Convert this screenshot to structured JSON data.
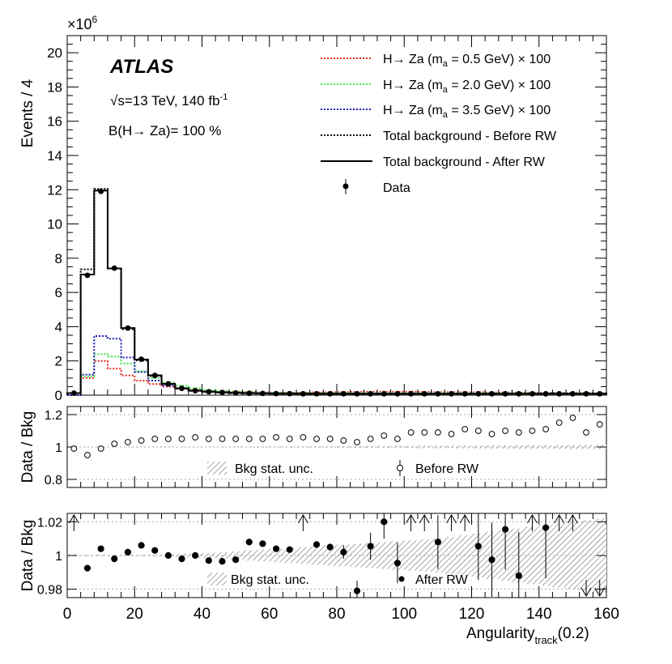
{
  "chart_data": [
    {
      "type": "line",
      "panel": "main",
      "y_multiplier": "×10",
      "y_multiplier_exp": "6",
      "ylabel": "Events / 4",
      "xlim": [
        0,
        160
      ],
      "ylim": [
        0,
        21
      ],
      "yticks": [
        0,
        2,
        4,
        6,
        8,
        10,
        12,
        14,
        16,
        18,
        20
      ],
      "bin_width": 4,
      "bin_edges_start": 0,
      "annotations": {
        "experiment": "ATLAS",
        "energy_prefix": "√s=13 TeV, 140 fb",
        "energy_exp": "-1",
        "br_text": "B(H→ Za)= 100 %"
      },
      "series": [
        {
          "name": "Total background - After RW",
          "style": "solid-black",
          "values": [
            0.12,
            7.05,
            11.95,
            7.4,
            3.92,
            2.08,
            1.16,
            0.66,
            0.4,
            0.26,
            0.2,
            0.16,
            0.13,
            0.11,
            0.1,
            0.09,
            0.09,
            0.08,
            0.08,
            0.08,
            0.08,
            0.08,
            0.08,
            0.08,
            0.08,
            0.08,
            0.08,
            0.08,
            0.08,
            0.08,
            0.08,
            0.08,
            0.08,
            0.08,
            0.08,
            0.08,
            0.08,
            0.08,
            0.08,
            0.08
          ]
        },
        {
          "name": "Total background - Before RW",
          "style": "dotted-black",
          "values": [
            0.12,
            7.35,
            12.05,
            7.4,
            3.85,
            2.02,
            1.12,
            0.64,
            0.39,
            0.25,
            0.19,
            0.15,
            0.12,
            0.1,
            0.09,
            0.08,
            0.08,
            0.08,
            0.08,
            0.08,
            0.08,
            0.08,
            0.08,
            0.08,
            0.08,
            0.08,
            0.08,
            0.08,
            0.08,
            0.08,
            0.08,
            0.08,
            0.08,
            0.08,
            0.08,
            0.08,
            0.08,
            0.08,
            0.08,
            0.08
          ]
        },
        {
          "name_prefix": "H→ Za (m",
          "name_sub": "a",
          "name_suffix": " = 0.5 GeV) × 100",
          "color": "#e8281e",
          "style": "dotted",
          "values": [
            0.0,
            1.0,
            2.0,
            1.55,
            1.15,
            0.85,
            0.65,
            0.5,
            0.38,
            0.3,
            0.25,
            0.22,
            0.2,
            0.18,
            0.16,
            0.15,
            0.15,
            0.15,
            0.16,
            0.17,
            0.18,
            0.19,
            0.2,
            0.2,
            0.2,
            0.2,
            0.19,
            0.18,
            0.18,
            0.17,
            0.17,
            0.16,
            0.16,
            0.15,
            0.15,
            0.14,
            0.14,
            0.13,
            0.13,
            0.12
          ]
        },
        {
          "name_prefix": "H→ Za (m",
          "name_sub": "a",
          "name_suffix": " = 2.0 GeV) × 100",
          "color": "#44e444",
          "style": "dotted",
          "values": [
            0.0,
            1.1,
            2.4,
            2.25,
            1.85,
            1.4,
            1.0,
            0.75,
            0.55,
            0.4,
            0.3,
            0.24,
            0.2,
            0.17,
            0.15,
            0.14,
            0.13,
            0.13,
            0.13,
            0.13,
            0.13,
            0.13,
            0.13,
            0.13,
            0.13,
            0.13,
            0.13,
            0.13,
            0.13,
            0.13,
            0.13,
            0.13,
            0.13,
            0.13,
            0.12,
            0.12,
            0.12,
            0.12,
            0.12,
            0.12
          ]
        },
        {
          "name_prefix": "H→ Za (m",
          "name_sub": "a",
          "name_suffix": " = 3.5 GeV) × 100",
          "color": "#1a1ab8",
          "style": "dotted",
          "values": [
            0.0,
            1.2,
            3.45,
            3.3,
            2.2,
            1.35,
            0.85,
            0.55,
            0.38,
            0.28,
            0.22,
            0.18,
            0.15,
            0.13,
            0.12,
            0.11,
            0.1,
            0.1,
            0.1,
            0.1,
            0.1,
            0.1,
            0.1,
            0.1,
            0.1,
            0.1,
            0.1,
            0.1,
            0.1,
            0.1,
            0.1,
            0.1,
            0.1,
            0.1,
            0.1,
            0.1,
            0.1,
            0.1,
            0.1,
            0.1
          ]
        },
        {
          "name": "Data",
          "style": "markers",
          "values": [
            0.12,
            7.0,
            11.9,
            7.42,
            3.92,
            2.1,
            1.15,
            0.66,
            0.4,
            0.26,
            0.2,
            0.16,
            0.13,
            0.11,
            0.1,
            0.09,
            0.09,
            0.08,
            0.08,
            0.08,
            0.08,
            0.08,
            0.08,
            0.08,
            0.08,
            0.08,
            0.08,
            0.08,
            0.08,
            0.08,
            0.08,
            0.08,
            0.08,
            0.08,
            0.08,
            0.08,
            0.08,
            0.08,
            0.08,
            0.08
          ]
        }
      ],
      "legend_placement": "top-right"
    },
    {
      "type": "scatter",
      "panel": "ratio-before",
      "ylabel": "Data / Bkg",
      "ylim": [
        0.75,
        1.25
      ],
      "yticks": [
        0.8,
        1,
        1.2
      ],
      "ytick_labels": [
        "0.8",
        "1",
        "1.2"
      ],
      "band_label": "Bkg stat. unc.",
      "marker_label": "Before RW",
      "x": [
        2,
        6,
        10,
        14,
        18,
        22,
        26,
        30,
        34,
        38,
        42,
        46,
        50,
        54,
        58,
        62,
        66,
        70,
        74,
        78,
        82,
        86,
        90,
        94,
        98,
        102,
        106,
        110,
        114,
        118,
        122,
        126,
        130,
        134,
        138,
        142,
        146,
        150,
        154,
        158
      ],
      "values": [
        0.99,
        0.95,
        0.99,
        1.02,
        1.03,
        1.04,
        1.05,
        1.05,
        1.05,
        1.06,
        1.05,
        1.05,
        1.05,
        1.05,
        1.05,
        1.06,
        1.05,
        1.06,
        1.05,
        1.05,
        1.04,
        1.03,
        1.05,
        1.07,
        1.05,
        1.09,
        1.09,
        1.09,
        1.08,
        1.11,
        1.1,
        1.08,
        1.1,
        1.09,
        1.1,
        1.11,
        1.15,
        1.18,
        1.09,
        1.14
      ],
      "band_halfwidth": [
        0.001,
        0.001,
        0.001,
        0.001,
        0.001,
        0.001,
        0.001,
        0.001,
        0.001,
        0.001,
        0.001,
        0.002,
        0.002,
        0.002,
        0.003,
        0.003,
        0.003,
        0.004,
        0.004,
        0.004,
        0.005,
        0.005,
        0.006,
        0.006,
        0.007,
        0.007,
        0.008,
        0.008,
        0.008,
        0.009,
        0.009,
        0.01,
        0.01,
        0.011,
        0.011,
        0.012,
        0.012,
        0.013,
        0.013,
        0.014
      ]
    },
    {
      "type": "scatter",
      "panel": "ratio-after",
      "ylabel": "Data / Bkg",
      "ylim": [
        0.975,
        1.025
      ],
      "yticks": [
        0.98,
        1,
        1.02
      ],
      "ytick_labels": [
        "0.98",
        "1",
        "1.02"
      ],
      "xlabel_main": "Angularity",
      "xlabel_sub": "track",
      "xlabel_tail": "(0.2)",
      "xticks": [
        0,
        20,
        40,
        60,
        80,
        100,
        120,
        140,
        160
      ],
      "band_label": "Bkg stat. unc.",
      "marker_label": "After RW",
      "x": [
        2,
        6,
        10,
        14,
        18,
        22,
        26,
        30,
        34,
        38,
        42,
        46,
        50,
        54,
        58,
        62,
        66,
        70,
        74,
        78,
        82,
        86,
        90,
        94,
        98,
        102,
        106,
        110,
        114,
        118,
        122,
        126,
        130,
        134,
        138,
        142,
        146,
        150,
        154,
        158
      ],
      "values": [
        1.03,
        0.9925,
        1.004,
        0.998,
        1.002,
        1.006,
        1.003,
        1.0,
        0.998,
        1.0,
        0.997,
        0.9965,
        0.9975,
        1.008,
        1.007,
        1.004,
        1.0035,
        1.03,
        1.0065,
        1.005,
        1.002,
        0.979,
        1.0055,
        1.02,
        0.9955,
        1.03,
        1.03,
        1.008,
        1.03,
        1.03,
        1.0055,
        0.9975,
        1.0155,
        0.988,
        1.03,
        1.0165,
        1.03,
        1.03,
        0.97,
        0.97
      ],
      "err": [
        0.0,
        0.0,
        0.0,
        0.0,
        0.0,
        0.0,
        0.0,
        0.0,
        0.0,
        0.0,
        0.0,
        0.0,
        0.0,
        0.0,
        0.0,
        0.0,
        0.0,
        0.0,
        0.002,
        0.002,
        0.004,
        0.006,
        0.008,
        0.01,
        0.012,
        0.0,
        0.0,
        0.016,
        0.0,
        0.0,
        0.02,
        0.022,
        0.024,
        0.026,
        0.0,
        0.03,
        0.0,
        0.0,
        0.0,
        0.0
      ],
      "arrows_up": [
        2,
        70,
        102,
        106,
        114,
        118,
        138,
        146,
        150
      ],
      "arrows_down": [
        154,
        158
      ],
      "band_halfwidth": [
        0.0005,
        0.0005,
        0.0005,
        0.0005,
        0.0005,
        0.0005,
        0.0006,
        0.0008,
        0.001,
        0.0012,
        0.0015,
        0.002,
        0.0025,
        0.003,
        0.0035,
        0.004,
        0.0045,
        0.005,
        0.0055,
        0.006,
        0.0065,
        0.007,
        0.0075,
        0.008,
        0.0085,
        0.009,
        0.0095,
        0.01,
        0.011,
        0.012,
        0.013,
        0.014,
        0.015,
        0.016,
        0.017,
        0.018,
        0.019,
        0.02,
        0.021,
        0.022
      ]
    }
  ]
}
